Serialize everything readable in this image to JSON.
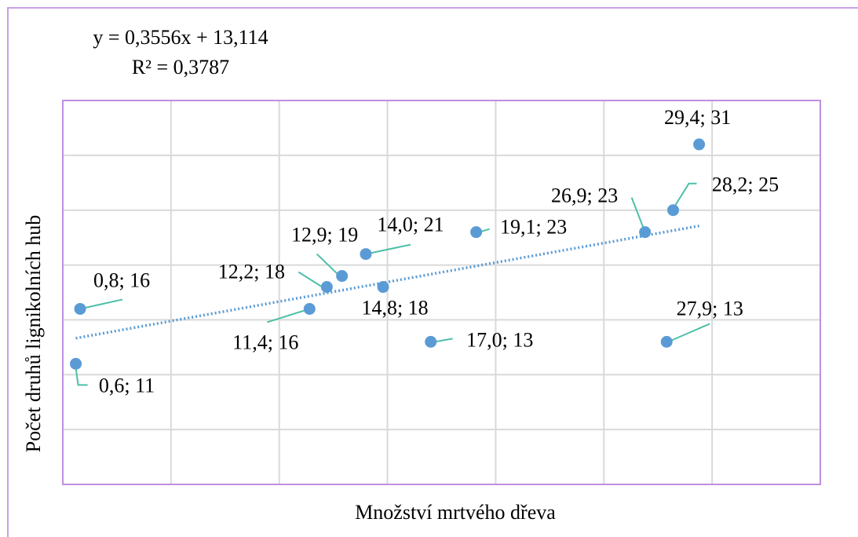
{
  "chart_data": {
    "type": "scatter",
    "x_label": "Množství mrtvého dřeva",
    "y_label": "Počet druhů lignikolních hub",
    "x": [
      0.6,
      0.8,
      11.4,
      12.2,
      12.9,
      14.0,
      14.8,
      17.0,
      19.1,
      26.9,
      27.9,
      28.2,
      29.4
    ],
    "values": [
      11,
      16,
      16,
      18,
      19,
      21,
      18,
      13,
      23,
      23,
      13,
      25,
      31
    ],
    "value_labels": [
      "0,6; 11",
      "0,8; 16",
      "11,4; 16",
      "12,2; 18",
      "12,9; 19",
      "14,0; 21",
      "14,8; 18",
      "17,0; 13",
      "19,1; 23",
      "26,9; 23",
      "27,9; 13",
      "28,2; 25",
      "29,4; 31"
    ],
    "color": "#5b9bd5",
    "xlim": [
      0,
      35
    ],
    "xticks": [
      0,
      5,
      10,
      15,
      20,
      25,
      30,
      35
    ],
    "ylim": [
      0,
      35
    ],
    "yticks": [
      0,
      5,
      10,
      15,
      20,
      25,
      30,
      35
    ],
    "grid": true,
    "trendline": {
      "slope": 0.3556,
      "intercept": 13.114,
      "equation": "y = 0,3556x + 13,114",
      "r2_label": "R² = 0,3787"
    }
  }
}
